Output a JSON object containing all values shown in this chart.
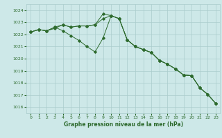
{
  "x": [
    0,
    1,
    2,
    3,
    4,
    5,
    6,
    7,
    8,
    9,
    10,
    11,
    12,
    13,
    14,
    15,
    16,
    17,
    18,
    19,
    20,
    21,
    22,
    23
  ],
  "line1": [
    1022.2,
    1022.4,
    1022.3,
    1022.5,
    1022.8,
    1022.6,
    1022.7,
    1022.7,
    1022.8,
    1023.3,
    1023.55,
    1023.3,
    1021.55,
    1021.0,
    1020.75,
    1020.5,
    1019.85,
    1019.55,
    1019.15,
    1018.65,
    1018.6,
    1017.6,
    1017.05,
    1016.3
  ],
  "line2": [
    1022.2,
    1022.4,
    1022.3,
    1022.6,
    1022.3,
    1021.9,
    1021.5,
    1021.0,
    1020.55,
    1021.7,
    1023.55,
    1023.3,
    1021.55,
    1021.0,
    1020.75,
    1020.5,
    1019.85,
    1019.55,
    1019.15,
    1018.65,
    1018.6,
    1017.6,
    1017.05,
    1016.3
  ],
  "line3": [
    1022.2,
    1022.4,
    1022.3,
    1022.6,
    1022.8,
    1022.6,
    1022.7,
    1022.7,
    1022.8,
    1023.7,
    1023.55,
    1023.3,
    1021.55,
    1021.0,
    1020.75,
    1020.5,
    1019.85,
    1019.55,
    1019.15,
    1018.65,
    1018.6,
    1017.6,
    1017.05,
    1016.3
  ],
  "bg_color": "#cde8e8",
  "grid_color": "#aacccc",
  "line_color": "#2d6a2d",
  "xlabel": "Graphe pression niveau de la mer (hPa)",
  "ylim_min": 1015.5,
  "ylim_max": 1024.5,
  "yticks": [
    1016,
    1017,
    1018,
    1019,
    1020,
    1021,
    1022,
    1023,
    1024
  ],
  "xticks": [
    0,
    1,
    2,
    3,
    4,
    5,
    6,
    7,
    8,
    9,
    10,
    11,
    12,
    13,
    14,
    15,
    16,
    17,
    18,
    19,
    20,
    21,
    22,
    23
  ]
}
